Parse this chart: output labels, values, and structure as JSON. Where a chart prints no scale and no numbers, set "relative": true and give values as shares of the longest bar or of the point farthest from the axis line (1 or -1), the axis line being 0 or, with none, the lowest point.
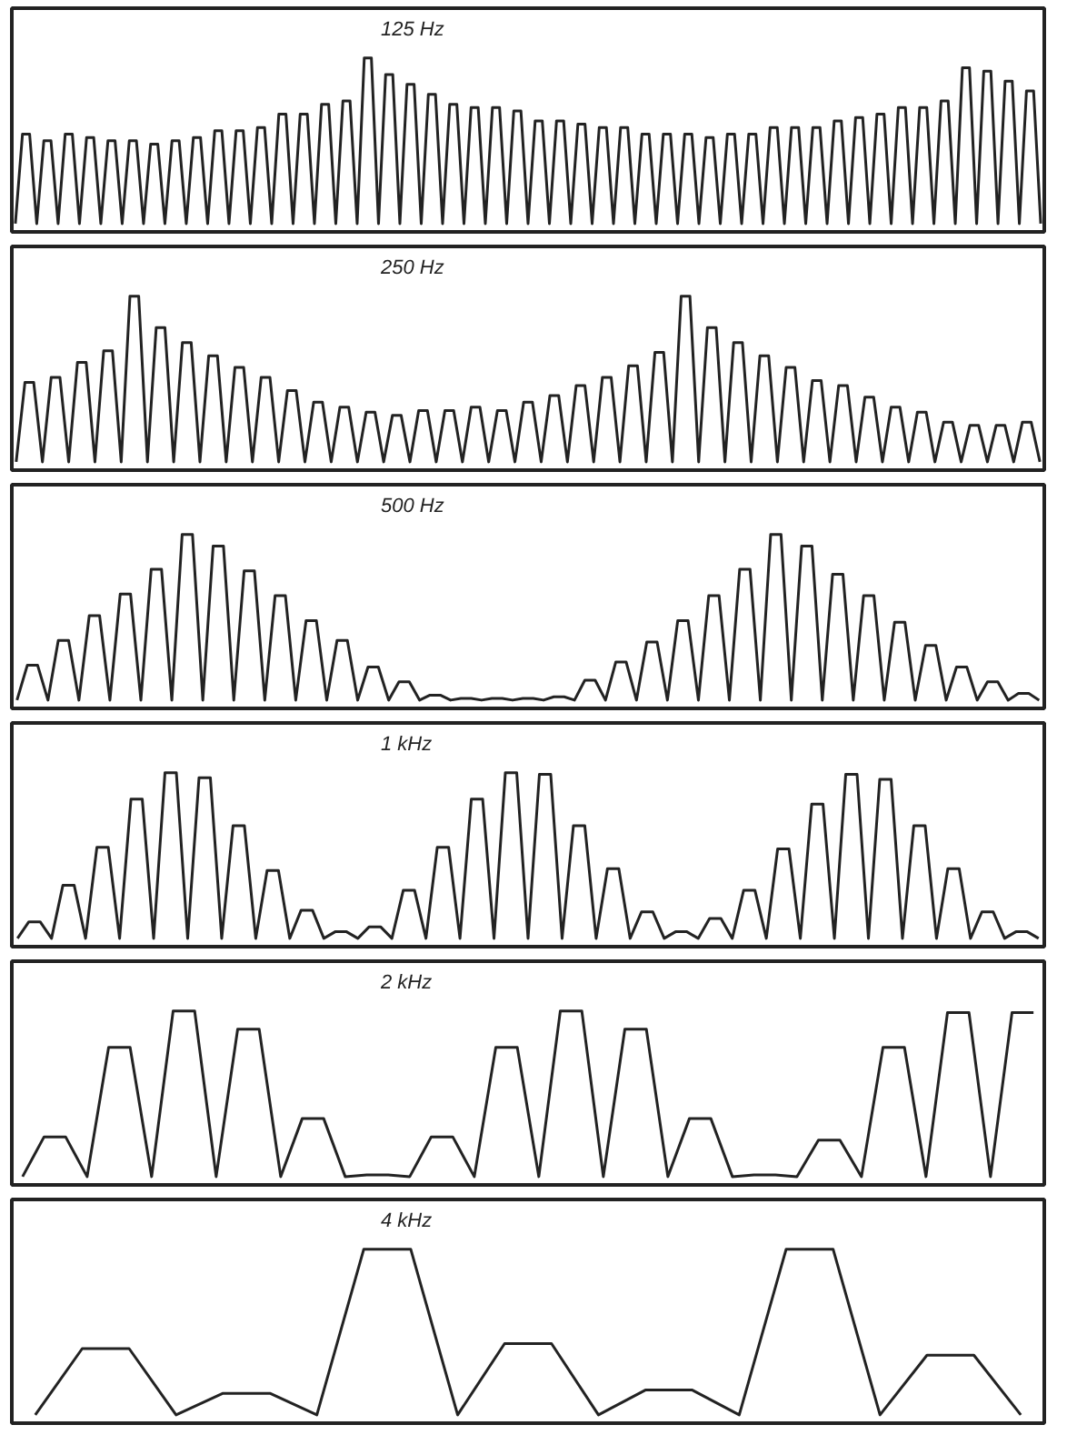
{
  "chart_data": [
    {
      "type": "line",
      "relative": true,
      "title": "125 Hz",
      "categories": [
        null,
        null,
        null,
        null,
        null,
        null,
        null,
        null,
        null,
        null,
        null,
        null,
        null,
        null,
        null,
        null,
        null,
        null,
        null,
        null,
        null,
        null,
        null,
        null,
        null,
        null,
        null,
        null,
        null,
        null,
        null,
        null,
        null,
        null,
        null,
        null,
        null,
        null,
        null,
        null,
        null,
        null,
        null,
        null,
        null,
        null,
        null,
        null,
        null,
        null,
        null,
        null,
        null,
        null,
        null,
        null,
        null,
        null,
        null,
        null,
        null,
        null,
        null,
        null,
        null,
        null,
        null,
        null,
        null,
        null,
        null,
        null,
        null,
        null,
        null,
        null,
        null,
        null,
        null,
        null,
        null,
        null,
        null,
        null,
        null,
        null,
        null,
        null,
        null,
        null,
        null,
        null,
        null,
        null,
        null,
        null,
        null,
        null,
        null,
        null,
        null,
        null,
        null,
        null,
        null,
        null,
        null,
        null,
        null,
        null,
        null,
        null,
        null,
        null,
        null,
        null,
        null,
        null,
        null,
        null,
        null,
        null,
        null,
        null,
        null,
        null,
        null,
        null,
        null,
        null,
        null,
        null,
        null,
        null,
        null,
        null,
        null,
        null,
        null,
        null,
        null,
        null,
        null,
        null,
        null
      ],
      "series": [
        {
          "color": "#222222",
          "values": [
            0,
            0.54,
            0.54,
            0,
            0.5,
            0.5,
            0,
            0.54,
            0.54,
            0,
            0.52,
            0.52,
            0,
            0.5,
            0.5,
            0,
            0.5,
            0.5,
            0,
            0.48,
            0.48,
            0,
            0.5,
            0.5,
            0,
            0.52,
            0.52,
            0,
            0.56,
            0.56,
            0,
            0.56,
            0.56,
            0,
            0.58,
            0.58,
            0,
            0.66,
            0.66,
            0,
            0.66,
            0.66,
            0,
            0.72,
            0.72,
            0,
            0.74,
            0.74,
            0,
            1,
            1,
            0,
            0.9,
            0.9,
            0,
            0.84,
            0.84,
            0,
            0.78,
            0.78,
            0,
            0.72,
            0.72,
            0,
            0.7,
            0.7,
            0,
            0.7,
            0.7,
            0,
            0.68,
            0.68,
            0,
            0.62,
            0.62,
            0,
            0.62,
            0.62,
            0,
            0.6,
            0.6,
            0,
            0.58,
            0.58,
            0,
            0.58,
            0.58,
            0,
            0.54,
            0.54,
            0,
            0.54,
            0.54,
            0,
            0.54,
            0.54,
            0,
            0.52,
            0.52,
            0,
            0.54,
            0.54,
            0,
            0.54,
            0.54,
            0,
            0.58,
            0.58,
            0,
            0.58,
            0.58,
            0,
            0.58,
            0.58,
            0,
            0.62,
            0.62,
            0,
            0.64,
            0.64,
            0,
            0.66,
            0.66,
            0,
            0.7,
            0.7,
            0,
            0.7,
            0.7,
            0,
            0.74,
            0.74,
            0,
            0.94,
            0.94,
            0,
            0.92,
            0.92,
            0,
            0.86,
            0.86,
            0,
            0.8,
            0.8,
            0
          ]
        }
      ]
    },
    {
      "type": "line",
      "relative": true,
      "title": "250 Hz",
      "categories": [
        null,
        null,
        null,
        null,
        null,
        null,
        null,
        null,
        null,
        null,
        null,
        null,
        null,
        null,
        null,
        null,
        null,
        null,
        null,
        null,
        null,
        null,
        null,
        null,
        null,
        null,
        null,
        null,
        null,
        null,
        null,
        null,
        null,
        null,
        null,
        null,
        null,
        null,
        null,
        null,
        null,
        null,
        null,
        null,
        null,
        null,
        null,
        null,
        null,
        null,
        null,
        null,
        null,
        null,
        null,
        null,
        null,
        null,
        null,
        null,
        null,
        null,
        null,
        null,
        null,
        null,
        null,
        null,
        null,
        null,
        null,
        null,
        null,
        null,
        null,
        null,
        null,
        null,
        null,
        null,
        null,
        null,
        null,
        null,
        null,
        null,
        null,
        null,
        null,
        null,
        null,
        null,
        null,
        null,
        null,
        null,
        null,
        null,
        null,
        null,
        null,
        null,
        null,
        null,
        null,
        null,
        null,
        null,
        null,
        null,
        null,
        null,
        null,
        null,
        null,
        null,
        null,
        null
      ],
      "series": [
        {
          "color": "#222222",
          "values": [
            0,
            0.48,
            0.48,
            0,
            0.51,
            0.51,
            0,
            0.6,
            0.6,
            0,
            0.67,
            0.67,
            0,
            1,
            1,
            0,
            0.81,
            0.81,
            0,
            0.72,
            0.72,
            0,
            0.64,
            0.64,
            0,
            0.57,
            0.57,
            0,
            0.51,
            0.51,
            0,
            0.43,
            0.43,
            0,
            0.36,
            0.36,
            0,
            0.33,
            0.33,
            0,
            0.3,
            0.3,
            0,
            0.28,
            0.28,
            0,
            0.31,
            0.31,
            0,
            0.31,
            0.31,
            0,
            0.33,
            0.33,
            0,
            0.31,
            0.31,
            0,
            0.36,
            0.36,
            0,
            0.4,
            0.4,
            0,
            0.46,
            0.46,
            0,
            0.51,
            0.51,
            0,
            0.58,
            0.58,
            0,
            0.66,
            0.66,
            0,
            1,
            1,
            0,
            0.81,
            0.81,
            0,
            0.72,
            0.72,
            0,
            0.64,
            0.64,
            0,
            0.57,
            0.57,
            0,
            0.49,
            0.49,
            0,
            0.46,
            0.46,
            0,
            0.39,
            0.39,
            0,
            0.33,
            0.33,
            0,
            0.3,
            0.3,
            0,
            0.24,
            0.24,
            0,
            0.22,
            0.22,
            0,
            0.22,
            0.22,
            0,
            0.24,
            0.24,
            0
          ]
        }
      ]
    },
    {
      "type": "line",
      "relative": true,
      "title": "500 Hz",
      "categories": [
        null,
        null,
        null,
        null,
        null,
        null,
        null,
        null,
        null,
        null,
        null,
        null,
        null,
        null,
        null,
        null,
        null,
        null,
        null,
        null,
        null,
        null,
        null,
        null,
        null,
        null,
        null,
        null,
        null,
        null,
        null,
        null,
        null,
        null,
        null,
        null,
        null,
        null,
        null,
        null,
        null,
        null,
        null,
        null,
        null,
        null,
        null,
        null,
        null,
        null,
        null,
        null,
        null,
        null,
        null,
        null,
        null,
        null,
        null,
        null,
        null,
        null,
        null,
        null,
        null,
        null,
        null,
        null,
        null,
        null,
        null,
        null,
        null,
        null,
        null,
        null,
        null,
        null,
        null,
        null,
        null,
        null,
        null,
        null,
        null,
        null,
        null,
        null,
        null,
        null,
        null,
        null,
        null,
        null,
        null,
        null,
        null,
        null,
        null,
        null
      ],
      "series": [
        {
          "color": "#222222",
          "values": [
            0,
            0.21,
            0.21,
            0,
            0.36,
            0.36,
            0,
            0.51,
            0.51,
            0,
            0.64,
            0.64,
            0,
            0.79,
            0.79,
            0,
            1,
            1,
            0,
            0.93,
            0.93,
            0,
            0.78,
            0.78,
            0,
            0.63,
            0.63,
            0,
            0.48,
            0.48,
            0,
            0.36,
            0.36,
            0,
            0.2,
            0.2,
            0,
            0.11,
            0.11,
            0,
            0.03,
            0.03,
            0,
            0.01,
            0.01,
            0,
            0.01,
            0.01,
            0,
            0.01,
            0.01,
            0,
            0.02,
            0.02,
            0,
            0.12,
            0.12,
            0,
            0.23,
            0.23,
            0,
            0.35,
            0.35,
            0,
            0.48,
            0.48,
            0,
            0.63,
            0.63,
            0,
            0.79,
            0.79,
            0,
            1,
            1,
            0,
            0.93,
            0.93,
            0,
            0.76,
            0.76,
            0,
            0.63,
            0.63,
            0,
            0.47,
            0.47,
            0,
            0.33,
            0.33,
            0,
            0.2,
            0.2,
            0,
            0.11,
            0.11,
            0,
            0.04,
            0.04,
            0
          ]
        }
      ]
    },
    {
      "type": "line",
      "relative": true,
      "title": "1 kHz",
      "categories": [
        null,
        null,
        null,
        null,
        null,
        null,
        null,
        null,
        null,
        null,
        null,
        null,
        null,
        null,
        null,
        null,
        null,
        null,
        null,
        null,
        null,
        null,
        null,
        null,
        null,
        null,
        null,
        null,
        null,
        null,
        null,
        null,
        null,
        null,
        null,
        null,
        null,
        null,
        null,
        null,
        null,
        null,
        null,
        null,
        null,
        null,
        null,
        null,
        null,
        null,
        null,
        null,
        null,
        null,
        null,
        null,
        null,
        null,
        null,
        null,
        null,
        null,
        null,
        null,
        null,
        null,
        null,
        null,
        null,
        null,
        null,
        null,
        null,
        null,
        null,
        null,
        null,
        null,
        null,
        null,
        null,
        null,
        null,
        null,
        null,
        null,
        null,
        null,
        null,
        null,
        null
      ],
      "series": [
        {
          "color": "#222222",
          "values": [
            0,
            0.1,
            0.1,
            0,
            0.32,
            0.32,
            0,
            0.55,
            0.55,
            0,
            0.84,
            0.84,
            0,
            1,
            1,
            0,
            0.97,
            0.97,
            0,
            0.68,
            0.68,
            0,
            0.41,
            0.41,
            0,
            0.17,
            0.17,
            0,
            0.04,
            0.04,
            0,
            0.07,
            0.07,
            0,
            0.29,
            0.29,
            0,
            0.55,
            0.55,
            0,
            0.84,
            0.84,
            0,
            1,
            1,
            0,
            0.99,
            0.99,
            0,
            0.68,
            0.68,
            0,
            0.42,
            0.42,
            0,
            0.16,
            0.16,
            0,
            0.04,
            0.04,
            0,
            0.12,
            0.12,
            0,
            0.29,
            0.29,
            0,
            0.54,
            0.54,
            0,
            0.81,
            0.81,
            0,
            0.99,
            0.99,
            0,
            0.96,
            0.96,
            0,
            0.68,
            0.68,
            0,
            0.42,
            0.42,
            0,
            0.16,
            0.16,
            0,
            0.04,
            0.04,
            0
          ]
        }
      ]
    },
    {
      "type": "line",
      "relative": true,
      "title": "2 kHz",
      "categories": [
        null,
        null,
        null,
        null,
        null,
        null,
        null,
        null,
        null,
        null,
        null,
        null,
        null,
        null,
        null,
        null,
        null,
        null,
        null,
        null,
        null,
        null,
        null,
        null,
        null,
        null,
        null,
        null,
        null,
        null,
        null,
        null,
        null,
        null,
        null,
        null,
        null,
        null,
        null,
        null,
        null,
        null,
        null,
        null,
        null,
        null,
        null,
        null
      ],
      "series": [
        {
          "color": "#222222",
          "values": [
            0,
            0.24,
            0.24,
            0,
            0.78,
            0.78,
            0,
            1,
            1,
            0,
            0.89,
            0.89,
            0,
            0.35,
            0.35,
            0,
            0.01,
            0.01,
            0,
            0.24,
            0.24,
            0,
            0.78,
            0.78,
            0,
            1,
            1,
            0,
            0.89,
            0.89,
            0,
            0.35,
            0.35,
            0,
            0.01,
            0.01,
            0,
            0.22,
            0.22,
            0,
            0.78,
            0.78,
            0,
            0.99,
            0.99,
            0,
            0.99,
            0.99
          ]
        }
      ]
    },
    {
      "type": "line",
      "relative": true,
      "title": "4 kHz",
      "categories": [
        null,
        null,
        null,
        null,
        null,
        null,
        null,
        null,
        null,
        null,
        null,
        null,
        null,
        null,
        null,
        null,
        null,
        null,
        null,
        null,
        null,
        null
      ],
      "series": [
        {
          "color": "#222222",
          "values": [
            0,
            0.4,
            0.4,
            0,
            0.13,
            0.13,
            0,
            1,
            1,
            0,
            0.43,
            0.43,
            0,
            0.15,
            0.15,
            0,
            1,
            1,
            0,
            0.36,
            0.36,
            0
          ]
        }
      ]
    }
  ]
}
